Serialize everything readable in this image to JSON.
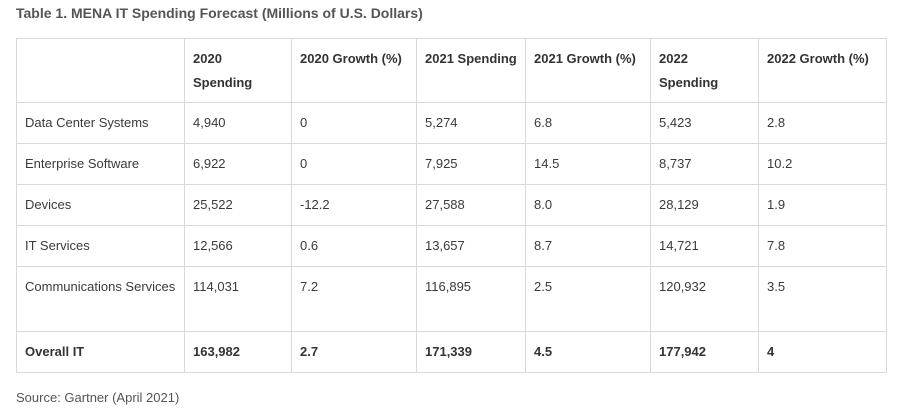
{
  "caption": "Table 1. MENA IT Spending Forecast (Millions of U.S. Dollars)",
  "table": {
    "headers": [
      "",
      "2020 Spending",
      "2020 Growth (%)",
      "2021 Spending",
      "2021 Growth (%)",
      "2022 Spending",
      "2022 Growth (%)"
    ],
    "rows": [
      [
        "Data Center Systems",
        "4,940",
        "0",
        "5,274",
        "6.8",
        "5,423",
        "2.8"
      ],
      [
        "Enterprise Software",
        "6,922",
        "0",
        "7,925",
        "14.5",
        "8,737",
        "10.2"
      ],
      [
        "Devices",
        "25,522",
        "-12.2",
        "27,588",
        "8.0",
        "28,129",
        "1.9"
      ],
      [
        "IT Services",
        "12,566",
        "0.6",
        "13,657",
        "8.7",
        "14,721",
        "7.8"
      ],
      [
        "Communications Services",
        "114,031",
        "7.2",
        "116,895",
        "2.5",
        "120,932",
        "3.5"
      ],
      [
        "Overall IT",
        "163,982",
        "2.7",
        "171,339",
        "4.5",
        "177,942",
        "4"
      ]
    ]
  },
  "source": "Source: Gartner (April 2021)"
}
